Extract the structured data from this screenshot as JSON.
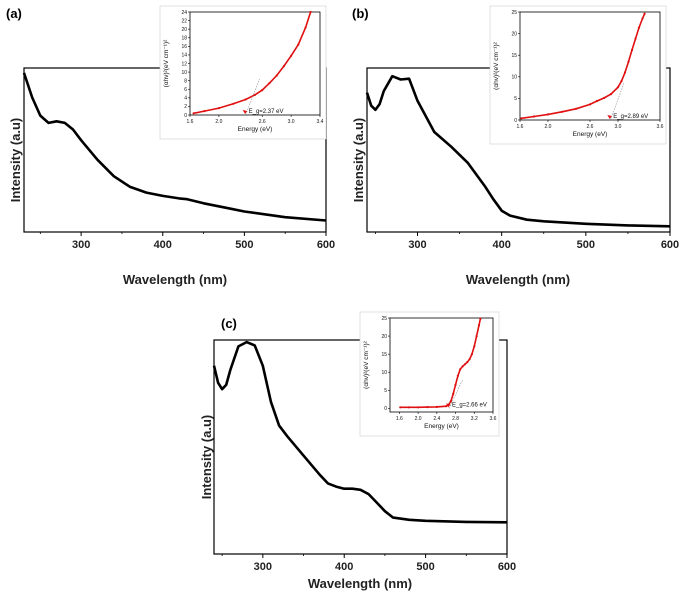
{
  "chart_data": [
    {
      "panel": "(a)",
      "type": "line",
      "xlabel": "Wavelength (nm)",
      "ylabel": "Intensity (a.u)",
      "xlim": [
        230,
        600
      ],
      "ylim": [
        0,
        1
      ],
      "xticks": [
        "300",
        "400",
        "500",
        "600"
      ],
      "series": [
        {
          "color": "#000000",
          "x": [
            230,
            240,
            250,
            260,
            270,
            280,
            290,
            300,
            320,
            340,
            360,
            380,
            400,
            420,
            430,
            450,
            480,
            500,
            550,
            600
          ],
          "y": [
            0.97,
            0.82,
            0.71,
            0.665,
            0.675,
            0.665,
            0.625,
            0.56,
            0.44,
            0.34,
            0.275,
            0.24,
            0.22,
            0.205,
            0.2,
            0.175,
            0.145,
            0.125,
            0.09,
            0.07
          ]
        }
      ],
      "inset": {
        "xlabel": "Energy (eV)",
        "ylabel": "(αhν)²(eV cm⁻¹)²",
        "xlim": [
          1.6,
          3.4
        ],
        "ylim": [
          0,
          24
        ],
        "xticks": [
          "1.6",
          "2.0",
          "2.6",
          "3.0",
          "3.4"
        ],
        "yticks": [
          "0",
          "2",
          "4",
          "6",
          "8",
          "10",
          "12",
          "14",
          "16",
          "18",
          "20",
          "22",
          "24"
        ],
        "series": [
          {
            "color": "#e01010",
            "x": [
              1.65,
              1.8,
              2.0,
              2.2,
              2.37,
              2.5,
              2.6,
              2.7,
              2.8,
              2.9,
              3.0,
              3.1,
              3.2,
              3.27
            ],
            "y": [
              0.4,
              0.9,
              1.6,
              2.6,
              3.6,
              4.7,
              5.8,
              7.4,
              9.2,
              11.4,
              13.8,
              16.4,
              20.4,
              24
            ]
          }
        ],
        "annotation": "E_g=2.37 eV",
        "eg": 2.37
      }
    },
    {
      "panel": "(b)",
      "type": "line",
      "xlabel": "Wavelength (nm)",
      "ylabel": "Intensity (a.u)",
      "xlim": [
        240,
        600
      ],
      "ylim": [
        0,
        1
      ],
      "xticks": [
        "300",
        "400",
        "500",
        "600"
      ],
      "series": [
        {
          "color": "#000000",
          "x": [
            240,
            245,
            250,
            255,
            260,
            270,
            280,
            290,
            300,
            320,
            340,
            360,
            380,
            390,
            400,
            410,
            430,
            450,
            500,
            550,
            600
          ],
          "y": [
            0.85,
            0.77,
            0.745,
            0.78,
            0.86,
            0.95,
            0.93,
            0.935,
            0.8,
            0.61,
            0.52,
            0.42,
            0.28,
            0.2,
            0.13,
            0.1,
            0.075,
            0.065,
            0.05,
            0.04,
            0.035
          ]
        }
      ],
      "inset": {
        "xlabel": "Energy (eV)",
        "ylabel": "(αhν)²(eV cm⁻¹)²",
        "xlim": [
          1.6,
          3.6
        ],
        "ylim": [
          0,
          25
        ],
        "xticks": [
          "1.6",
          "2.0",
          "2.6",
          "3.0",
          "3.6"
        ],
        "yticks": [
          "0",
          "5",
          "10",
          "15",
          "20",
          "25"
        ],
        "series": [
          {
            "color": "#e01010",
            "x": [
              1.62,
              1.8,
              2.0,
              2.2,
              2.4,
              2.6,
              2.7,
              2.8,
              2.9,
              3.0,
              3.05,
              3.1,
              3.15,
              3.2,
              3.25,
              3.3,
              3.35,
              3.38
            ],
            "y": [
              0.4,
              0.8,
              1.3,
              1.9,
              2.6,
              3.6,
              4.4,
              5.1,
              6.0,
              7.6,
              9.0,
              11.0,
              13.5,
              16.2,
              18.8,
              21.4,
              23.5,
              24.6
            ]
          }
        ],
        "annotation": "E_g=2.89 eV",
        "eg": 2.89
      }
    },
    {
      "panel": "(c)",
      "type": "line",
      "xlabel": "Wavelength (nm)",
      "ylabel": "Intensity (a.u)",
      "xlim": [
        240,
        600
      ],
      "ylim": [
        0,
        1
      ],
      "xticks": [
        "300",
        "400",
        "500",
        "600"
      ],
      "series": [
        {
          "color": "#000000",
          "x": [
            240,
            245,
            250,
            255,
            260,
            270,
            280,
            290,
            300,
            310,
            320,
            330,
            350,
            370,
            380,
            390,
            400,
            410,
            420,
            430,
            440,
            450,
            460,
            480,
            500,
            550,
            600
          ],
          "y": [
            0.88,
            0.8,
            0.77,
            0.79,
            0.86,
            0.97,
            0.99,
            0.975,
            0.88,
            0.71,
            0.6,
            0.55,
            0.46,
            0.37,
            0.33,
            0.315,
            0.305,
            0.305,
            0.3,
            0.28,
            0.24,
            0.2,
            0.17,
            0.16,
            0.155,
            0.15,
            0.148
          ]
        }
      ],
      "inset": {
        "xlabel": "Energy (eV)",
        "ylabel": "(αhν)²(eV cm⁻¹)²",
        "xlim": [
          1.4,
          3.6
        ],
        "ylim": [
          -1,
          25
        ],
        "xticks": [
          "1.6",
          "2.0",
          "2.4",
          "2.8",
          "3.2",
          "3.6"
        ],
        "yticks": [
          "0",
          "5",
          "10",
          "15",
          "20",
          "25"
        ],
        "series": [
          {
            "color": "#e01010",
            "x": [
              1.62,
              1.8,
              2.0,
              2.2,
              2.4,
              2.6,
              2.65,
              2.7,
              2.75,
              2.8,
              2.85,
              2.9,
              2.95,
              3.0,
              3.05,
              3.1,
              3.15,
              3.2,
              3.25,
              3.3,
              3.33
            ],
            "y": [
              0.3,
              0.3,
              0.3,
              0.35,
              0.4,
              0.6,
              1.0,
              2.0,
              4.0,
              6.5,
              9.0,
              10.8,
              11.6,
              12.2,
              12.8,
              13.6,
              15.0,
              17.2,
              20.0,
              23.0,
              24.8
            ]
          }
        ],
        "annotation": "E_g=2.66 eV",
        "eg": 2.66
      }
    }
  ]
}
